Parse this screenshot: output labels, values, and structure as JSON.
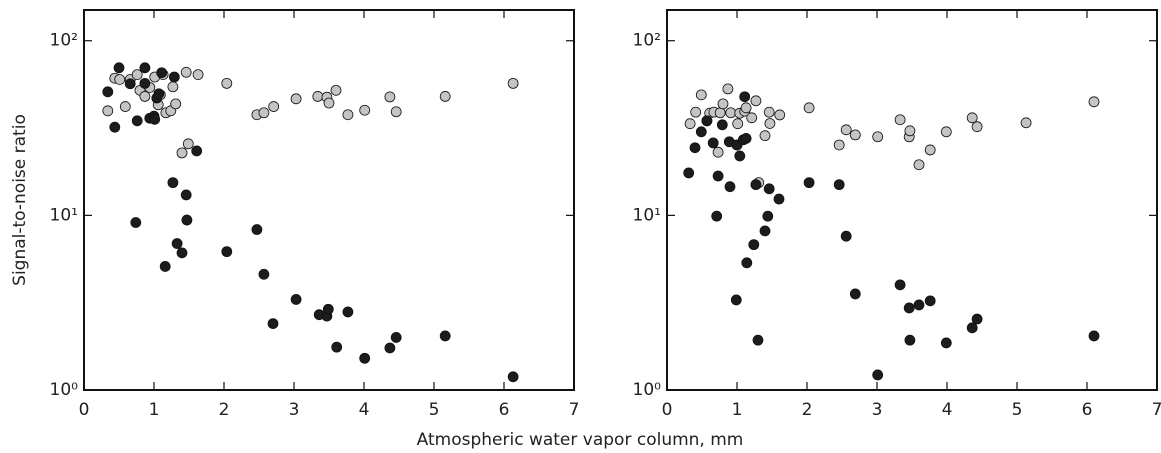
{
  "ylabel": "Signal-to-noise ratio",
  "xlabel": "Atmospheric water vapor column, mm",
  "chart_data": [
    {
      "type": "scatter",
      "yscale": "log",
      "xlim": [
        0,
        7
      ],
      "ylim": [
        1,
        150
      ],
      "xticks": [
        0,
        1,
        2,
        3,
        4,
        5,
        6,
        7
      ],
      "yticks": [
        {
          "value": 1,
          "label": "10⁰"
        },
        {
          "value": 10,
          "label": "10¹"
        },
        {
          "value": 100,
          "label": "10²"
        }
      ],
      "series": [
        {
          "color": "#c4c4c4",
          "x": [
            0.34,
            0.44,
            0.51,
            0.59,
            0.66,
            0.76,
            0.8,
            0.87,
            0.94,
            1.01,
            1.06,
            1.09,
            1.13,
            1.17,
            1.24,
            1.27,
            1.31,
            1.4,
            1.49,
            1.46,
            1.63,
            2.04,
            2.47,
            2.57,
            2.71,
            3.03,
            3.34,
            3.47,
            3.5,
            3.6,
            3.77,
            4.01,
            4.37,
            4.46,
            5.16,
            6.13
          ],
          "values": [
            39.7,
            61,
            60,
            42,
            60,
            64,
            52,
            48,
            54,
            62,
            43,
            49,
            64,
            38.7,
            39.7,
            54.5,
            43.5,
            22.8,
            25.7,
            66,
            64,
            57,
            37.7,
            38.7,
            42,
            46.5,
            48,
            47.5,
            44,
            52,
            37.7,
            40,
            47.7,
            39.2,
            48,
            57
          ]
        },
        {
          "color": "#1c1c1c",
          "x": [
            0.34,
            0.44,
            0.5,
            0.66,
            0.76,
            0.74,
            0.87,
            0.87,
            0.94,
            1.0,
            1.04,
            1.01,
            1.07,
            1.11,
            1.16,
            1.29,
            1.27,
            1.33,
            1.4,
            1.46,
            1.47,
            1.61,
            2.04,
            2.47,
            2.57,
            2.7,
            3.03,
            3.36,
            3.47,
            3.49,
            3.77,
            3.61,
            4.01,
            4.37,
            4.46,
            5.16,
            6.13
          ],
          "values": [
            51,
            32,
            70,
            56.7,
            34.8,
            9.1,
            70,
            57,
            36,
            37,
            47,
            35.5,
            49.7,
            65.6,
            5.1,
            62,
            15.4,
            6.9,
            6.1,
            13.1,
            9.4,
            23.4,
            6.2,
            8.3,
            4.6,
            2.4,
            3.3,
            2.7,
            2.65,
            2.9,
            2.8,
            1.76,
            1.52,
            1.74,
            2.0,
            2.04,
            1.19
          ]
        }
      ]
    },
    {
      "type": "scatter",
      "yscale": "log",
      "xlim": [
        0,
        7
      ],
      "ylim": [
        1,
        150
      ],
      "xticks": [
        0,
        1,
        2,
        3,
        4,
        5,
        6,
        7
      ],
      "yticks": [
        {
          "value": 1,
          "label": "10⁰"
        },
        {
          "value": 10,
          "label": "10¹"
        },
        {
          "value": 100,
          "label": "10²"
        }
      ],
      "series": [
        {
          "color": "#c4c4c4",
          "x": [
            0.33,
            0.41,
            0.49,
            0.57,
            0.61,
            0.67,
            0.73,
            0.76,
            0.8,
            0.87,
            0.91,
            1.0,
            1.01,
            1.04,
            1.11,
            1.13,
            1.21,
            1.27,
            1.31,
            1.4,
            1.46,
            1.47,
            1.61,
            2.03,
            2.46,
            2.56,
            2.69,
            3.01,
            3.33,
            3.46,
            3.47,
            3.6,
            3.76,
            3.99,
            4.36,
            4.43,
            5.13,
            6.1
          ],
          "values": [
            33.5,
            39,
            49,
            34.8,
            38.5,
            39,
            23,
            38.7,
            43.5,
            53,
            38.7,
            25.3,
            33.5,
            38.5,
            39.5,
            41.3,
            36.2,
            45.3,
            15.4,
            28.6,
            39,
            33.6,
            37.6,
            41.3,
            25.3,
            30.9,
            28.9,
            28.2,
            35.3,
            28.2,
            30.5,
            19.5,
            23.7,
            30.1,
            36.2,
            32.2,
            33.9,
            44.7
          ]
        },
        {
          "color": "#1c1c1c",
          "x": [
            0.31,
            0.4,
            0.49,
            0.57,
            0.66,
            0.79,
            0.73,
            0.71,
            0.89,
            0.9,
            0.99,
            1.0,
            1.04,
            1.09,
            1.11,
            1.13,
            1.14,
            1.24,
            1.27,
            1.3,
            1.4,
            1.44,
            1.46,
            1.6,
            2.03,
            2.46,
            2.56,
            2.69,
            3.01,
            3.33,
            3.46,
            3.47,
            3.6,
            3.76,
            3.99,
            4.36,
            4.43,
            6.1
          ],
          "values": [
            17.5,
            24.4,
            30.1,
            34.8,
            26,
            33,
            16.8,
            9.9,
            26.4,
            14.6,
            3.28,
            25.3,
            21.9,
            27.1,
            47.8,
            27.6,
            5.35,
            6.8,
            15,
            1.93,
            8.15,
            9.9,
            14.2,
            12.4,
            15.4,
            15,
            7.6,
            3.55,
            1.22,
            4.0,
            2.95,
            1.93,
            3.07,
            3.24,
            1.86,
            2.27,
            2.55,
            2.04
          ]
        }
      ]
    }
  ]
}
